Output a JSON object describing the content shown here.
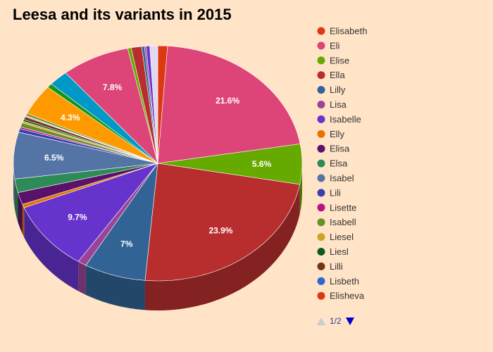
{
  "chart_data": {
    "type": "pie",
    "title": "Leesa and its variants in 2015",
    "style": "3d",
    "legend": "right",
    "slices": [
      {
        "name": "Elisabeth",
        "value": 1.1,
        "color": "#dc3912"
      },
      {
        "name": "Eli",
        "value": 21.6,
        "color": "#dd4477",
        "label": "21.6%"
      },
      {
        "name": "Elise",
        "value": 5.6,
        "color": "#66aa00",
        "label": "5.6%"
      },
      {
        "name": "Ella",
        "value": 23.9,
        "color": "#b82e2e",
        "label": "23.9%"
      },
      {
        "name": "Lilly",
        "value": 7.0,
        "color": "#316395",
        "label": "7%"
      },
      {
        "name": "Lisa",
        "value": 1.0,
        "color": "#994499"
      },
      {
        "name": "Isabelle",
        "value": 9.7,
        "color": "#6633cc",
        "label": "9.7%"
      },
      {
        "name": "Elly",
        "value": 0.5,
        "color": "#e67300"
      },
      {
        "name": "Elisa",
        "value": 1.7,
        "color": "#5a1169"
      },
      {
        "name": "Elsa",
        "value": 1.9,
        "color": "#2e8b57"
      },
      {
        "name": "Isabel",
        "value": 6.5,
        "color": "#5574a6",
        "label": "6.5%"
      },
      {
        "name": "Lili",
        "value": 0.5,
        "color": "#3b3eac"
      },
      {
        "name": "Lisette",
        "value": 0.25,
        "color": "#b91383"
      },
      {
        "name": "Isabell",
        "value": 0.6,
        "color": "#6b8e23"
      },
      {
        "name": "Liesel",
        "value": 0.25,
        "color": "#c9a227"
      },
      {
        "name": "Liesl",
        "value": 0.25,
        "color": "#0c5922"
      },
      {
        "name": "Lilli",
        "value": 0.4,
        "color": "#743411"
      },
      {
        "name": "Lisbeth",
        "value": 0.1,
        "color": "#3366cc"
      },
      {
        "name": "Elisheva",
        "value": 0.1,
        "color": "#dc3912"
      },
      {
        "name": "",
        "value": 0.3,
        "color": "#6b8e23"
      },
      {
        "name": "",
        "value": 4.3,
        "color": "#ff9900",
        "label": "4.3%"
      },
      {
        "name": "",
        "value": 0.6,
        "color": "#109618"
      },
      {
        "name": "",
        "value": 2.2,
        "color": "#0099c6"
      },
      {
        "name": "",
        "value": 7.8,
        "color": "#dd4477",
        "label": "7.8%"
      },
      {
        "name": "",
        "value": 0.4,
        "color": "#66aa00"
      },
      {
        "name": "",
        "value": 1.2,
        "color": "#b82e2e"
      },
      {
        "name": "",
        "value": 0.3,
        "color": "#316395"
      },
      {
        "name": "",
        "value": 0.2,
        "color": "#994499"
      },
      {
        "name": "",
        "value": 0.4,
        "color": "#6633cc"
      },
      {
        "name": "",
        "value": 0.9,
        "color": "#e2d8f0"
      }
    ],
    "legend_entries": [
      {
        "name": "Elisabeth",
        "color": "#dc3912"
      },
      {
        "name": "Eli",
        "color": "#dd4477"
      },
      {
        "name": "Elise",
        "color": "#66aa00"
      },
      {
        "name": "Ella",
        "color": "#b82e2e"
      },
      {
        "name": "Lilly",
        "color": "#316395"
      },
      {
        "name": "Lisa",
        "color": "#994499"
      },
      {
        "name": "Isabelle",
        "color": "#6633cc"
      },
      {
        "name": "Elly",
        "color": "#e67300"
      },
      {
        "name": "Elisa",
        "color": "#5a1169"
      },
      {
        "name": "Elsa",
        "color": "#2e8b57"
      },
      {
        "name": "Isabel",
        "color": "#5574a6"
      },
      {
        "name": "Lili",
        "color": "#3b3eac"
      },
      {
        "name": "Lisette",
        "color": "#b91383"
      },
      {
        "name": "Isabell",
        "color": "#6b8e23"
      },
      {
        "name": "Liesel",
        "color": "#c9a227"
      },
      {
        "name": "Liesl",
        "color": "#0c5922"
      },
      {
        "name": "Lilli",
        "color": "#743411"
      },
      {
        "name": "Lisbeth",
        "color": "#3366cc"
      },
      {
        "name": "Elisheva",
        "color": "#dc3912"
      }
    ],
    "legend_pager": {
      "text": "1/2",
      "prev_icon": "triangle-up-icon",
      "next_icon": "triangle-down-icon",
      "prev_color": "#cccccc",
      "next_color": "#0000cc"
    }
  }
}
